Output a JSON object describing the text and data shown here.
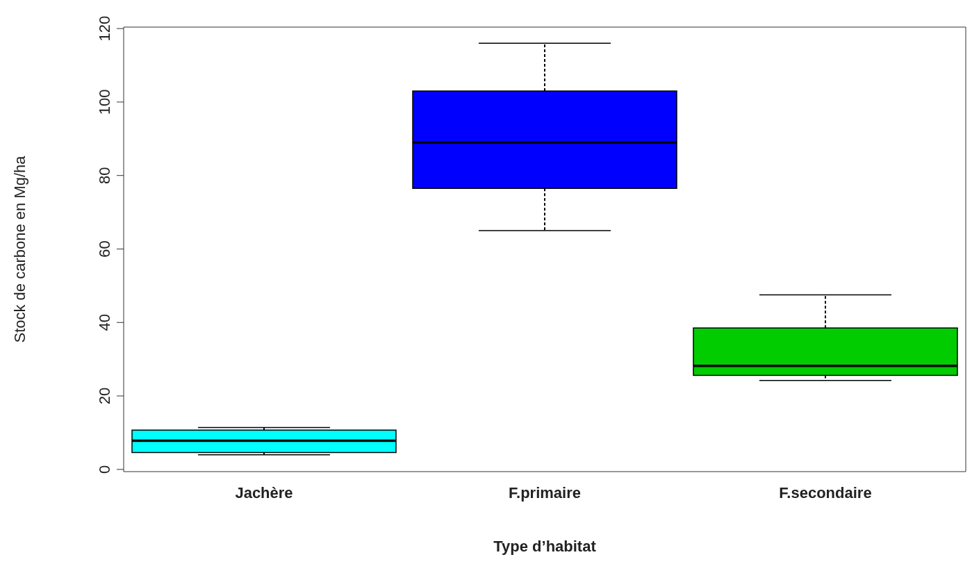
{
  "chart_data": {
    "type": "box",
    "xlabel": "Type d’habitat",
    "ylabel": "Stock de carbone en Mg/ha",
    "categories": [
      "Jachère",
      "F.primaire",
      "F.secondaire"
    ],
    "colors": [
      "#00ffff",
      "#0000ff",
      "#00cc00"
    ],
    "boxes": [
      {
        "low": 4.0,
        "q1": 4.6,
        "median": 7.8,
        "q3": 10.7,
        "high": 11.4
      },
      {
        "low": 65,
        "q1": 76.5,
        "median": 89,
        "q3": 103,
        "high": 116
      },
      {
        "low": 24.2,
        "q1": 25.6,
        "median": 28.2,
        "q3": 38.5,
        "high": 47.5
      }
    ],
    "ylim": [
      -0.6,
      120.4
    ],
    "yticks": [
      0,
      20,
      40,
      60,
      80,
      100,
      120
    ],
    "grid": false,
    "legend": false
  }
}
